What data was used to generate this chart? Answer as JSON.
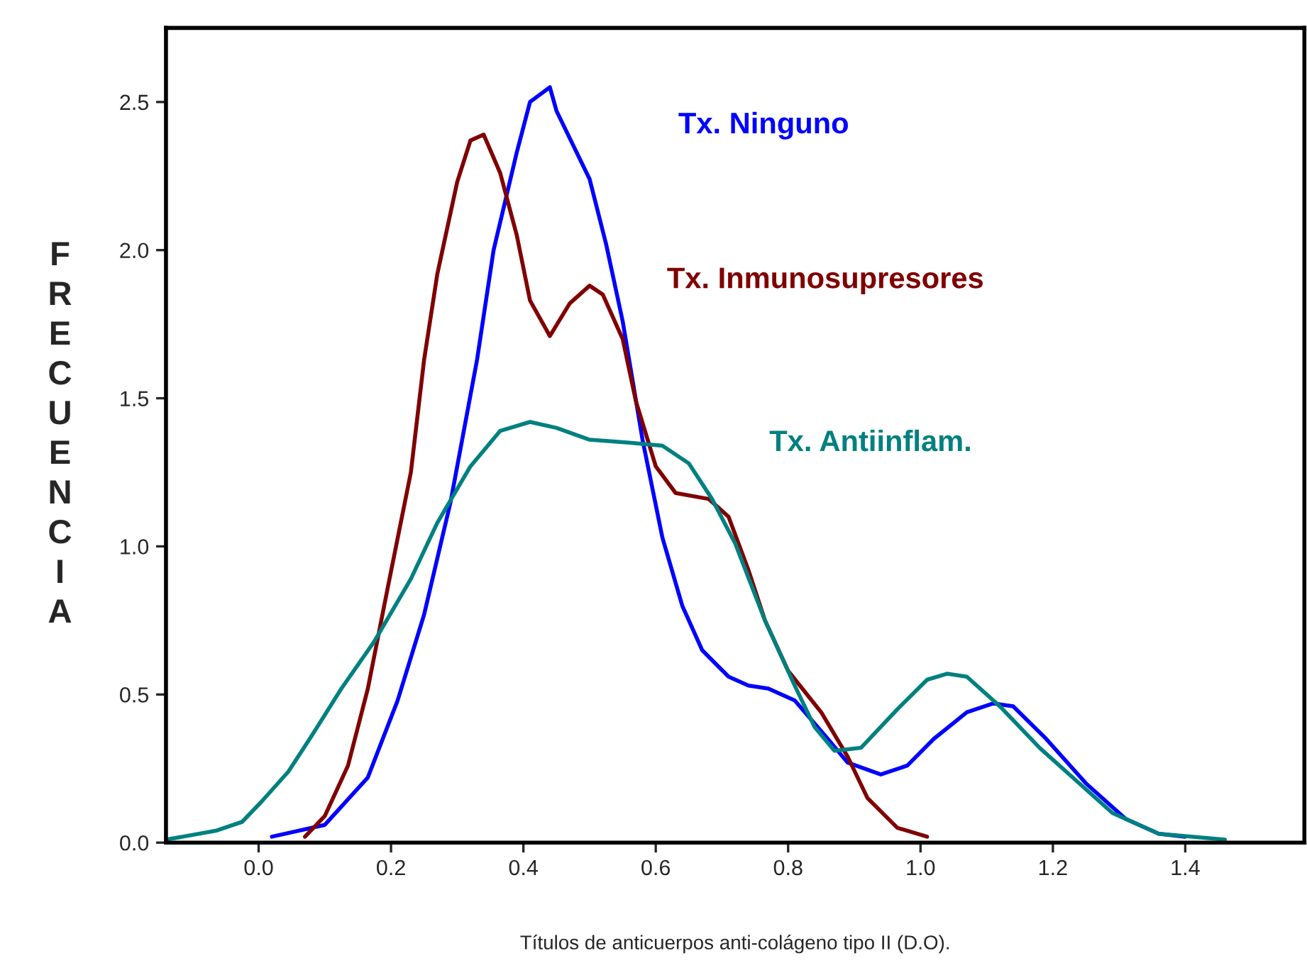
{
  "chart_data": {
    "type": "line",
    "xlabel": "Títulos de anticuerpos anti-colágeno tipo II (D.O).",
    "ylabel": "FRECUENCIA",
    "xlim": [
      -0.14,
      1.58
    ],
    "ylim": [
      0,
      2.75
    ],
    "xticks": [
      {
        "value": 0,
        "label": "0.0"
      },
      0.2,
      0.4,
      0.6,
      0.8,
      {
        "value": 1,
        "label": "1.0"
      },
      1.2,
      1.4
    ],
    "yticks": [
      {
        "value": 0,
        "label": "0.0"
      },
      0.5,
      {
        "value": 1,
        "label": "1.0"
      },
      1.5,
      {
        "value": 2,
        "label": "2.0"
      },
      2.5
    ],
    "grid": false,
    "legend": false,
    "marker": "none",
    "line_style": "solid",
    "series": [
      {
        "name": "Tx. Ninguno",
        "color": "#0000ff",
        "x": [
          0.02,
          0.1,
          0.165,
          0.21,
          0.25,
          0.29,
          0.33,
          0.355,
          0.39,
          0.41,
          0.44,
          0.45,
          0.5,
          0.525,
          0.55,
          0.58,
          0.61,
          0.64,
          0.67,
          0.71,
          0.74,
          0.77,
          0.81,
          0.86,
          0.89,
          0.94,
          0.98,
          1.02,
          1.07,
          1.11,
          1.14,
          1.19,
          1.25,
          1.31,
          1.36,
          1.4
        ],
        "values": [
          0.02,
          0.06,
          0.22,
          0.48,
          0.77,
          1.15,
          1.63,
          2.0,
          2.33,
          2.5,
          2.55,
          2.47,
          2.24,
          2.02,
          1.76,
          1.36,
          1.03,
          0.8,
          0.65,
          0.56,
          0.53,
          0.52,
          0.48,
          0.35,
          0.27,
          0.23,
          0.26,
          0.35,
          0.44,
          0.47,
          0.46,
          0.35,
          0.2,
          0.08,
          0.03,
          0.02
        ]
      },
      {
        "name": "Tx. Inmunosupresores",
        "color": "#800000",
        "x": [
          0.07,
          0.1,
          0.135,
          0.165,
          0.195,
          0.23,
          0.25,
          0.27,
          0.3,
          0.32,
          0.34,
          0.365,
          0.39,
          0.41,
          0.44,
          0.47,
          0.5,
          0.52,
          0.55,
          0.57,
          0.6,
          0.63,
          0.68,
          0.71,
          0.74,
          0.765,
          0.8,
          0.85,
          0.89,
          0.92,
          0.965,
          1.01
        ],
        "values": [
          0.02,
          0.09,
          0.26,
          0.52,
          0.86,
          1.25,
          1.63,
          1.92,
          2.23,
          2.37,
          2.39,
          2.26,
          2.05,
          1.83,
          1.71,
          1.82,
          1.88,
          1.85,
          1.7,
          1.49,
          1.27,
          1.18,
          1.16,
          1.1,
          0.92,
          0.75,
          0.58,
          0.44,
          0.29,
          0.15,
          0.05,
          0.02
        ]
      },
      {
        "name": "Tx. Antiinflam.",
        "color": "#008080",
        "x": [
          -0.14,
          -0.065,
          -0.025,
          0.005,
          0.045,
          0.08,
          0.125,
          0.175,
          0.23,
          0.27,
          0.32,
          0.365,
          0.41,
          0.45,
          0.5,
          0.56,
          0.61,
          0.65,
          0.685,
          0.72,
          0.765,
          0.81,
          0.84,
          0.87,
          0.91,
          0.965,
          1.01,
          1.04,
          1.07,
          1.12,
          1.18,
          1.24,
          1.29,
          1.36,
          1.46
        ],
        "values": [
          0.01,
          0.04,
          0.07,
          0.14,
          0.24,
          0.36,
          0.52,
          0.68,
          0.89,
          1.08,
          1.27,
          1.39,
          1.42,
          1.4,
          1.36,
          1.35,
          1.34,
          1.28,
          1.16,
          1.01,
          0.75,
          0.53,
          0.39,
          0.31,
          0.32,
          0.45,
          0.55,
          0.57,
          0.56,
          0.46,
          0.32,
          0.2,
          0.1,
          0.03,
          0.01
        ]
      }
    ]
  }
}
